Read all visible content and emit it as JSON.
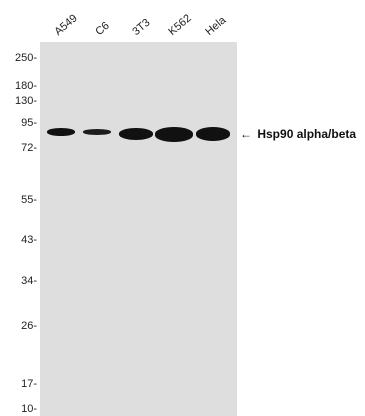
{
  "lanes": [
    "A549",
    "C6",
    "3T3",
    "K562",
    "Hela"
  ],
  "markers": [
    "250-",
    "180-",
    "130-",
    "95-",
    "72-",
    "55-",
    "43-",
    "34-",
    "26-",
    "17-",
    "10-"
  ],
  "target": {
    "arrow": "←",
    "label": "Hsp90 alpha/beta"
  },
  "colors": {
    "membrane": "#dedede",
    "band": "#111111"
  }
}
